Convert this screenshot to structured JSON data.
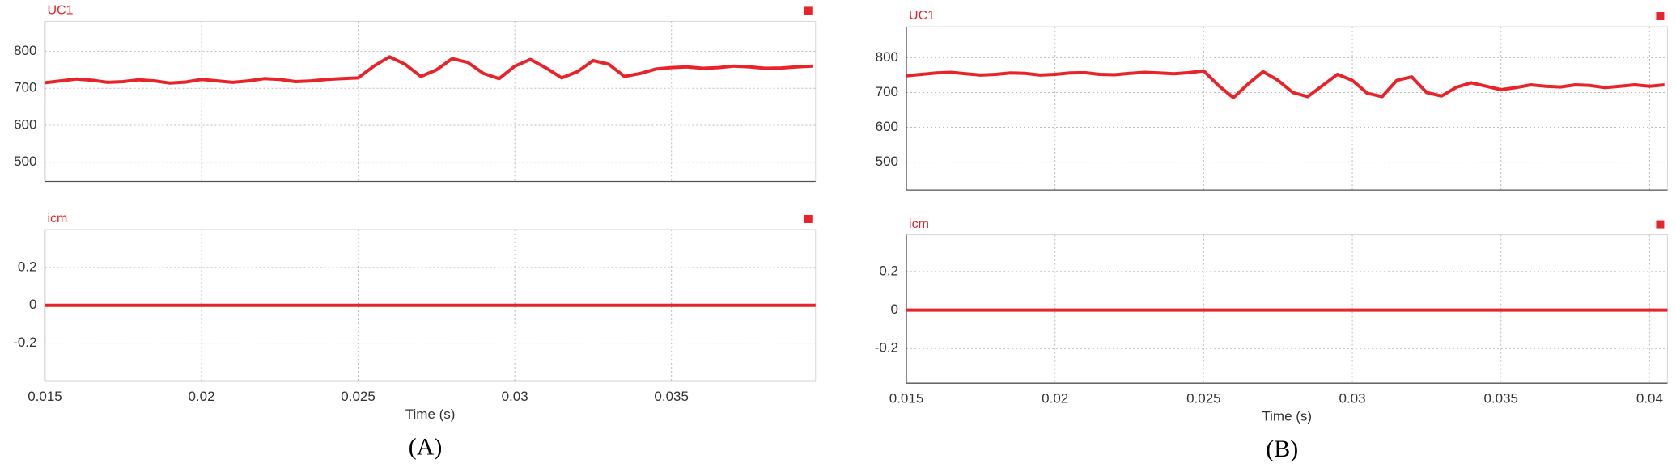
{
  "chart_data": [
    {
      "type": "line",
      "title": "UC1",
      "color": "#e8242a",
      "show_xtick_labels": false,
      "x": [
        0.015,
        0.0155,
        0.016,
        0.0165,
        0.017,
        0.0175,
        0.018,
        0.0185,
        0.019,
        0.0195,
        0.02,
        0.0205,
        0.021,
        0.0215,
        0.022,
        0.0225,
        0.023,
        0.0235,
        0.024,
        0.0245,
        0.025,
        0.0255,
        0.026,
        0.0265,
        0.027,
        0.0275,
        0.028,
        0.0285,
        0.029,
        0.0295,
        0.03,
        0.0305,
        0.031,
        0.0315,
        0.032,
        0.0325,
        0.033,
        0.0335,
        0.034,
        0.0345,
        0.035,
        0.0355,
        0.036,
        0.0365,
        0.037,
        0.0375,
        0.038,
        0.0385,
        0.039,
        0.0395
      ],
      "values": [
        715,
        720,
        725,
        722,
        716,
        718,
        723,
        720,
        714,
        717,
        724,
        720,
        716,
        720,
        726,
        724,
        718,
        720,
        724,
        726,
        728,
        760,
        785,
        765,
        732,
        750,
        780,
        770,
        740,
        726,
        760,
        778,
        755,
        728,
        745,
        775,
        765,
        732,
        740,
        752,
        756,
        758,
        754,
        756,
        760,
        758,
        754,
        755,
        758,
        760
      ],
      "xlim": [
        0.015,
        0.0396
      ],
      "xticks": [
        0.015,
        0.02,
        0.025,
        0.03,
        0.035
      ],
      "ylim": [
        448,
        881
      ],
      "yticks": [
        500,
        600,
        700,
        800
      ]
    },
    {
      "type": "line",
      "title": "icm",
      "color": "#e8242a",
      "show_xtick_labels": true,
      "xlabel": "Time (s)",
      "caption": "(A)",
      "x": [
        0.015,
        0.0396
      ],
      "values": [
        0,
        0
      ],
      "xlim": [
        0.015,
        0.0396
      ],
      "xticks": [
        0.015,
        0.02,
        0.025,
        0.03,
        0.035
      ],
      "ylim": [
        -0.4,
        0.4
      ],
      "yticks": [
        0.2,
        0,
        -0.2
      ]
    },
    {
      "type": "line",
      "title": "UC1",
      "color": "#e8242a",
      "show_xtick_labels": false,
      "x": [
        0.015,
        0.0155,
        0.016,
        0.0165,
        0.017,
        0.0175,
        0.018,
        0.0185,
        0.019,
        0.0195,
        0.02,
        0.0205,
        0.021,
        0.0215,
        0.022,
        0.0225,
        0.023,
        0.0235,
        0.024,
        0.0245,
        0.025,
        0.0255,
        0.026,
        0.0265,
        0.027,
        0.0275,
        0.028,
        0.0285,
        0.029,
        0.0295,
        0.03,
        0.0305,
        0.031,
        0.0315,
        0.032,
        0.0325,
        0.033,
        0.0335,
        0.034,
        0.0345,
        0.035,
        0.0355,
        0.036,
        0.0365,
        0.037,
        0.0375,
        0.038,
        0.0385,
        0.039,
        0.0395,
        0.04,
        0.0405
      ],
      "values": [
        748,
        752,
        756,
        758,
        754,
        750,
        752,
        756,
        755,
        750,
        752,
        756,
        757,
        752,
        751,
        755,
        758,
        756,
        754,
        757,
        762,
        720,
        685,
        725,
        760,
        735,
        700,
        688,
        720,
        752,
        735,
        698,
        688,
        735,
        745,
        700,
        690,
        715,
        728,
        718,
        708,
        714,
        722,
        718,
        716,
        722,
        720,
        714,
        718,
        722,
        718,
        722
      ],
      "xlim": [
        0.015,
        0.0406
      ],
      "xticks": [
        0.015,
        0.02,
        0.025,
        0.03,
        0.035,
        0.04
      ],
      "ylim": [
        420,
        889
      ],
      "yticks": [
        500,
        600,
        700,
        800
      ]
    },
    {
      "type": "line",
      "title": "icm",
      "color": "#e8242a",
      "show_xtick_labels": true,
      "xlabel": "Time (s)",
      "caption": "(B)",
      "x": [
        0.015,
        0.0406
      ],
      "values": [
        0,
        0
      ],
      "xlim": [
        0.015,
        0.0406
      ],
      "xticks": [
        0.015,
        0.02,
        0.025,
        0.03,
        0.035,
        0.04
      ],
      "ylim": [
        -0.38,
        0.39
      ],
      "yticks": [
        0.2,
        0,
        -0.2
      ]
    }
  ]
}
